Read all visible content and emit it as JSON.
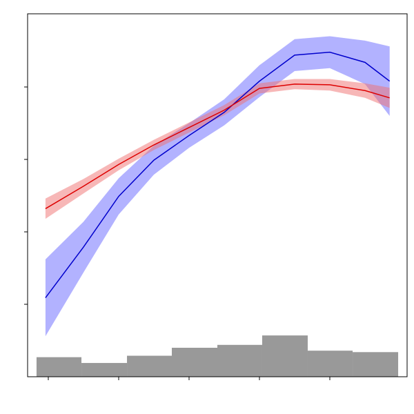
{
  "chart_data": {
    "type": "line",
    "x": [
      -0.04,
      0.5,
      1,
      1.5,
      2,
      2.5,
      3,
      3.5,
      4,
      4.5,
      4.85
    ],
    "series": [
      {
        "color": "#0000cc",
        "band_color": "#6666ff",
        "values": [
          1.09,
          1.79,
          2.49,
          2.99,
          3.33,
          3.65,
          4.08,
          4.44,
          4.48,
          4.34,
          4.08
        ],
        "lower": [
          0.56,
          1.44,
          2.24,
          2.79,
          3.16,
          3.47,
          3.86,
          4.22,
          4.26,
          4.04,
          3.6
        ],
        "upper": [
          1.62,
          2.14,
          2.74,
          3.19,
          3.5,
          3.83,
          4.3,
          4.66,
          4.7,
          4.64,
          4.56
        ]
      },
      {
        "color": "#dd0000",
        "band_color": "#f07070",
        "values": [
          2.32,
          2.63,
          2.93,
          3.2,
          3.44,
          3.68,
          3.98,
          4.04,
          4.03,
          3.95,
          3.85
        ],
        "lower": [
          2.18,
          2.53,
          2.85,
          3.13,
          3.37,
          3.61,
          3.91,
          3.97,
          3.95,
          3.85,
          3.71
        ],
        "upper": [
          2.46,
          2.73,
          3.01,
          3.27,
          3.51,
          3.75,
          4.05,
          4.11,
          4.11,
          4.05,
          3.99
        ]
      }
    ],
    "histogram": {
      "color": "#999999",
      "bins": [
        -0.167,
        0.471,
        1.118,
        1.755,
        2.402,
        3.039,
        3.686,
        4.324,
        4.971
      ],
      "counts": [
        0.27,
        0.19,
        0.29,
        0.4,
        0.44,
        0.57,
        0.36,
        0.34
      ]
    },
    "xlim": [
      -0.294,
      5.098
    ],
    "ylim": [
      0,
      5.01
    ],
    "xticks": [
      0,
      1,
      2,
      3,
      4
    ],
    "yticks": [
      1,
      2,
      3,
      4
    ]
  }
}
